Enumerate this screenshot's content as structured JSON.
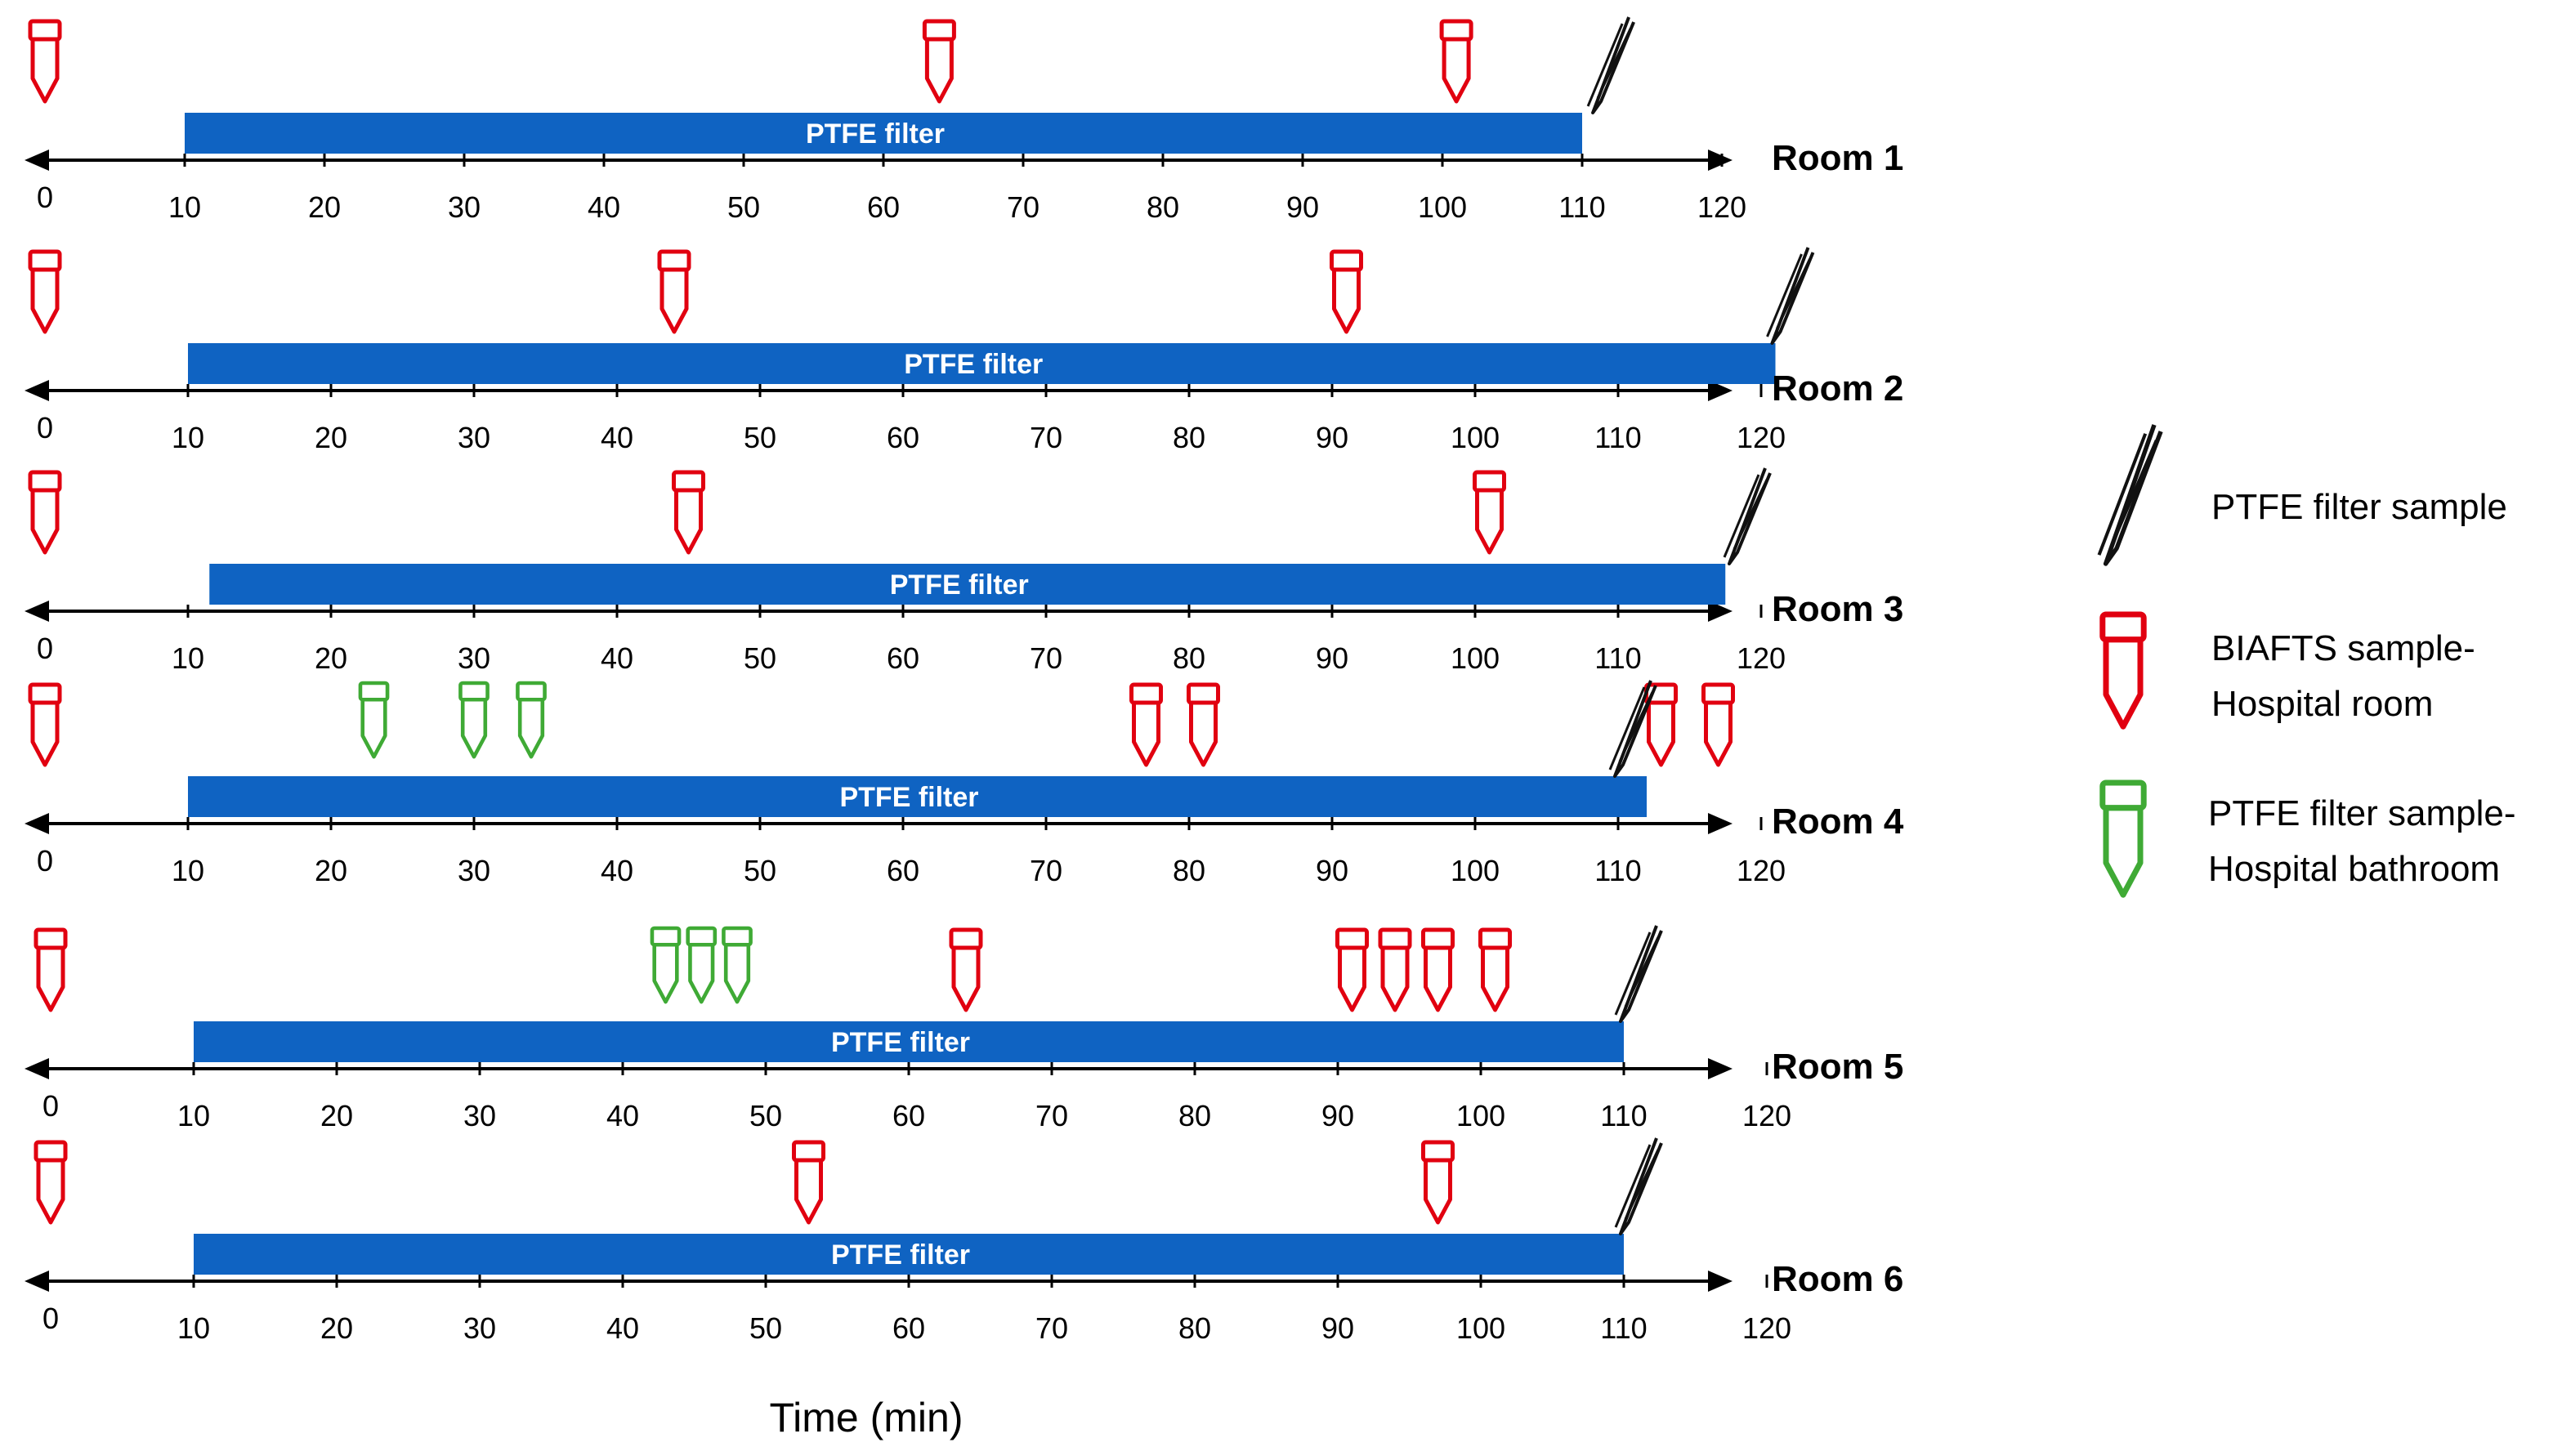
{
  "diagram": {
    "time_axis": {
      "ticks": [
        "0",
        "10",
        "20",
        "30",
        "40",
        "50",
        "60",
        "70",
        "80",
        "90",
        "100",
        "110",
        "120"
      ],
      "xlabel": "Time (min)"
    },
    "rooms": [
      {
        "label": "Room 1",
        "bar": {
          "label": "PTFE filter",
          "start_min": 10,
          "end_min": 110
        },
        "biafts_samples_min": [
          0,
          64,
          101
        ],
        "bathroom_samples_min": [],
        "ptfe_sample_min": [
          111
        ]
      },
      {
        "label": "Room 2",
        "bar": {
          "label": "PTFE filter",
          "start_min": 10,
          "end_min": 121
        },
        "biafts_samples_min": [
          0,
          44,
          91
        ],
        "bathroom_samples_min": [],
        "ptfe_sample_min": [
          121
        ]
      },
      {
        "label": "Room 3",
        "bar": {
          "label": "PTFE filter",
          "start_min": 11.5,
          "end_min": 117.5
        },
        "biafts_samples_min": [
          0,
          45,
          101
        ],
        "bathroom_samples_min": [],
        "ptfe_sample_min": [
          118
        ]
      },
      {
        "label": "Room 4",
        "bar": {
          "label": "PTFE filter",
          "start_min": 10,
          "end_min": 112
        },
        "biafts_samples_min": [
          0,
          77,
          81,
          113,
          117
        ],
        "bathroom_samples_min": [
          23,
          30,
          34
        ],
        "ptfe_sample_min": [
          110
        ]
      },
      {
        "label": "Room 5",
        "bar": {
          "label": "PTFE filter",
          "start_min": 10,
          "end_min": 110
        },
        "biafts_samples_min": [
          0,
          64,
          91,
          94,
          97,
          101
        ],
        "bathroom_samples_min": [
          43,
          45.5,
          48
        ],
        "ptfe_sample_min": [
          110
        ]
      },
      {
        "label": "Room 6",
        "bar": {
          "label": "PTFE filter",
          "start_min": 10,
          "end_min": 110
        },
        "biafts_samples_min": [
          0,
          53,
          97
        ],
        "bathroom_samples_min": [],
        "ptfe_sample_min": [
          110
        ]
      }
    ],
    "legend": [
      {
        "icon": "tweezers-icon",
        "text": "PTFE filter sample"
      },
      {
        "icon": "red-tube-icon",
        "text": "BIAFTS sample-\nHospital room"
      },
      {
        "icon": "green-tube-icon",
        "text": "PTFE filter sample-\nHospital bathroom"
      }
    ],
    "colors": {
      "bar": "#0f63c2",
      "biafts": "#e10010",
      "bathroom": "#3faa35",
      "axis": "#000000",
      "tweezers": "#111111"
    }
  }
}
